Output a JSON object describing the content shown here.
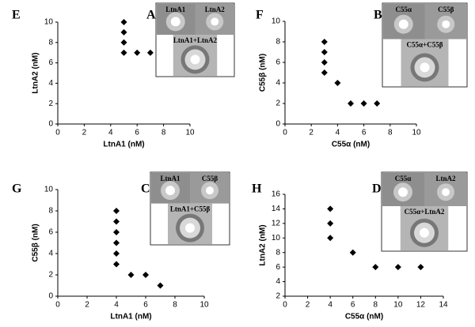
{
  "chart_data": [
    {
      "type": "scatter",
      "panel": "E",
      "inset_panel": "A",
      "inset_labels": [
        "LtnA1",
        "LtnA2",
        "LtnA1+LtnA2"
      ],
      "x_label": "LtnA1 (nM)",
      "y_label": "LtnA2 (nM)",
      "color": "#000000",
      "x": [
        5,
        5,
        5,
        5,
        6,
        7
      ],
      "y": [
        10,
        9,
        8,
        7,
        7,
        7
      ],
      "xlim": [
        0,
        10
      ],
      "ylim": [
        0,
        10
      ],
      "xticks": [
        0,
        2,
        4,
        6,
        8,
        10
      ],
      "yticks": [
        0,
        2,
        4,
        6,
        8,
        10
      ]
    },
    {
      "type": "scatter",
      "panel": "F",
      "inset_panel": "B",
      "inset_labels": [
        "C55α",
        "C55β",
        "C55α+C55β"
      ],
      "x_label": "C55α (nM)",
      "y_label": "C55β (nM)",
      "color": "#000000",
      "x": [
        3,
        3,
        3,
        3,
        4,
        5,
        6,
        7
      ],
      "y": [
        8,
        7,
        6,
        5,
        4,
        2,
        2,
        2
      ],
      "xlim": [
        0,
        10
      ],
      "ylim": [
        0,
        10
      ],
      "xticks": [
        0,
        2,
        4,
        6,
        8,
        10
      ],
      "yticks": [
        0,
        2,
        4,
        6,
        8,
        10
      ]
    },
    {
      "type": "scatter",
      "panel": "G",
      "inset_panel": "C",
      "inset_labels": [
        "LtnA1",
        "C55β",
        "LtnA1+C55β"
      ],
      "x_label": "LtnA1 (nM)",
      "y_label": "C55β (nM)",
      "color": "#000000",
      "x": [
        4,
        4,
        4,
        4,
        4,
        4,
        5,
        6,
        7
      ],
      "y": [
        8,
        7,
        6,
        5,
        4,
        3,
        2,
        2,
        1
      ],
      "xlim": [
        0,
        10
      ],
      "ylim": [
        0,
        10
      ],
      "xticks": [
        0,
        2,
        4,
        6,
        8,
        10
      ],
      "yticks": [
        0,
        2,
        4,
        6,
        8,
        10
      ]
    },
    {
      "type": "scatter",
      "panel": "H",
      "inset_panel": "D",
      "inset_labels": [
        "C55α",
        "LtnA2",
        "C55α+LtnA2"
      ],
      "x_label": "C55α (nM)",
      "y_label": "LtnA2 (nM)",
      "color": "#000000",
      "x": [
        4,
        4,
        4,
        6,
        8,
        10,
        12
      ],
      "y": [
        14,
        12,
        10,
        8,
        6,
        6,
        6
      ],
      "xlim": [
        0,
        14
      ],
      "ylim": [
        2,
        16
      ],
      "xticks": [
        0,
        2,
        4,
        6,
        8,
        10,
        12,
        14
      ],
      "yticks": [
        2,
        4,
        6,
        8,
        10,
        12,
        14,
        16
      ]
    }
  ]
}
